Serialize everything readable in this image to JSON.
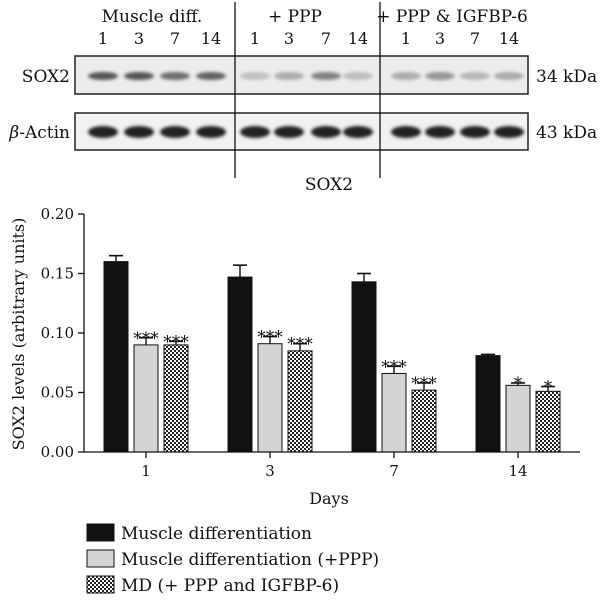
{
  "blot": {
    "groups": [
      {
        "label": "Muscle diff.",
        "lanes": [
          "1",
          "3",
          "7",
          "14"
        ]
      },
      {
        "label": "+ PPP",
        "lanes": [
          "1",
          "3",
          "7",
          "14"
        ]
      },
      {
        "label": "+ PPP & IGFBP-6",
        "lanes": [
          "1",
          "3",
          "7",
          "14"
        ]
      }
    ],
    "rows": [
      {
        "label": "SOX2",
        "size": "34 kDa",
        "intensity": [
          0.72,
          0.72,
          0.6,
          0.65,
          0.2,
          0.3,
          0.5,
          0.22,
          0.3,
          0.4,
          0.25,
          0.3
        ]
      },
      {
        "label_prefix": "β",
        "label": "-Actin",
        "size": "43 kDa",
        "intensity": [
          0.95,
          0.95,
          0.95,
          0.95,
          0.95,
          0.95,
          0.95,
          0.95,
          0.95,
          0.95,
          0.95,
          0.95
        ]
      }
    ],
    "caption": "SOX2"
  },
  "chart_data": {
    "type": "bar",
    "categories": [
      "1",
      "3",
      "7",
      "14"
    ],
    "series": [
      {
        "name": "Muscle differentiation",
        "values": [
          0.16,
          0.147,
          0.143,
          0.081
        ],
        "errors": [
          0.005,
          0.01,
          0.007,
          0.001
        ],
        "marks": [
          "",
          "",
          "",
          ""
        ],
        "color": "#111111",
        "fill": "solid-black"
      },
      {
        "name": "Muscle differentiation (+PPP)",
        "values": [
          0.09,
          0.091,
          0.066,
          0.056
        ],
        "errors": [
          0.006,
          0.006,
          0.006,
          0.002
        ],
        "marks": [
          "***",
          "***",
          "***",
          "*"
        ],
        "color": "#d0d0d0",
        "fill": "solid-gray"
      },
      {
        "name": "MD (+ PPP and IGFBP-6)",
        "values": [
          0.09,
          0.085,
          0.052,
          0.051
        ],
        "errors": [
          0.003,
          0.006,
          0.006,
          0.004
        ],
        "marks": [
          "***",
          "***",
          "***",
          "*"
        ],
        "color": "#333333",
        "fill": "checkered"
      }
    ],
    "xlabel": "Days",
    "ylabel": "SOX2 levels (arbitrary units)",
    "ylim": [
      0,
      0.2
    ],
    "yticks": [
      "0.00",
      "0.05",
      "0.10",
      "0.15",
      "0.20"
    ],
    "grid": false,
    "legend_position": "bottom-left"
  }
}
